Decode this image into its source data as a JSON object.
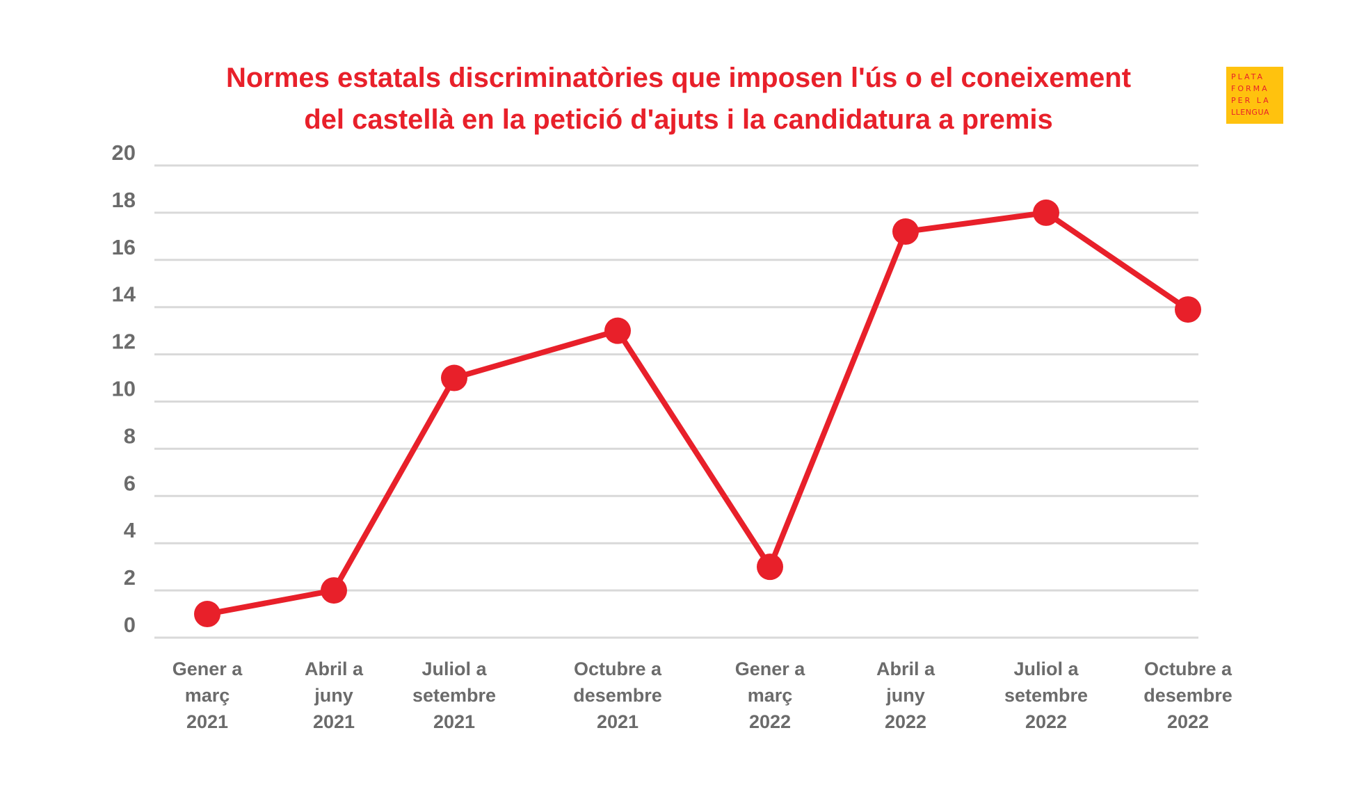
{
  "chart_data": {
    "type": "line",
    "title": [
      "Normes estatals discriminatòries que imposen l'ús o el coneixement",
      "del castellà en la petició d'ajuts i la candidatura a premis"
    ],
    "categories": [
      [
        "Gener a",
        "març",
        "2021"
      ],
      [
        "Abril a",
        "juny",
        "2021"
      ],
      [
        "Juliol a",
        "setembre",
        "2021"
      ],
      [
        "Octubre a",
        "desembre",
        "2021"
      ],
      [
        "Gener a",
        "març",
        "2022"
      ],
      [
        "Abril a",
        "juny",
        "2022"
      ],
      [
        "Juliol a",
        "setembre",
        "2022"
      ],
      [
        "Octubre a",
        "desembre",
        "2022"
      ]
    ],
    "series": [
      {
        "name": "Normes",
        "values": [
          1,
          2,
          11,
          13,
          3,
          17.2,
          18,
          13.9
        ],
        "color": "#e8202a"
      }
    ],
    "ylim": [
      0,
      20
    ],
    "yticks": [
      "0",
      "2",
      "4",
      "6",
      "8",
      "10",
      "12",
      "14",
      "16",
      "18",
      "20"
    ],
    "xlabel": "",
    "ylabel": "",
    "grid": true,
    "legend": "none"
  },
  "logo": {
    "lines": [
      "PLATA",
      "FORMA",
      "PER LA",
      "LLENGUA"
    ],
    "background": "#ffc20e",
    "color": "#e8202a"
  },
  "colors": {
    "title": "#e8202a",
    "axis_text": "#6b6b6b",
    "grid": "#d9d9d9"
  }
}
